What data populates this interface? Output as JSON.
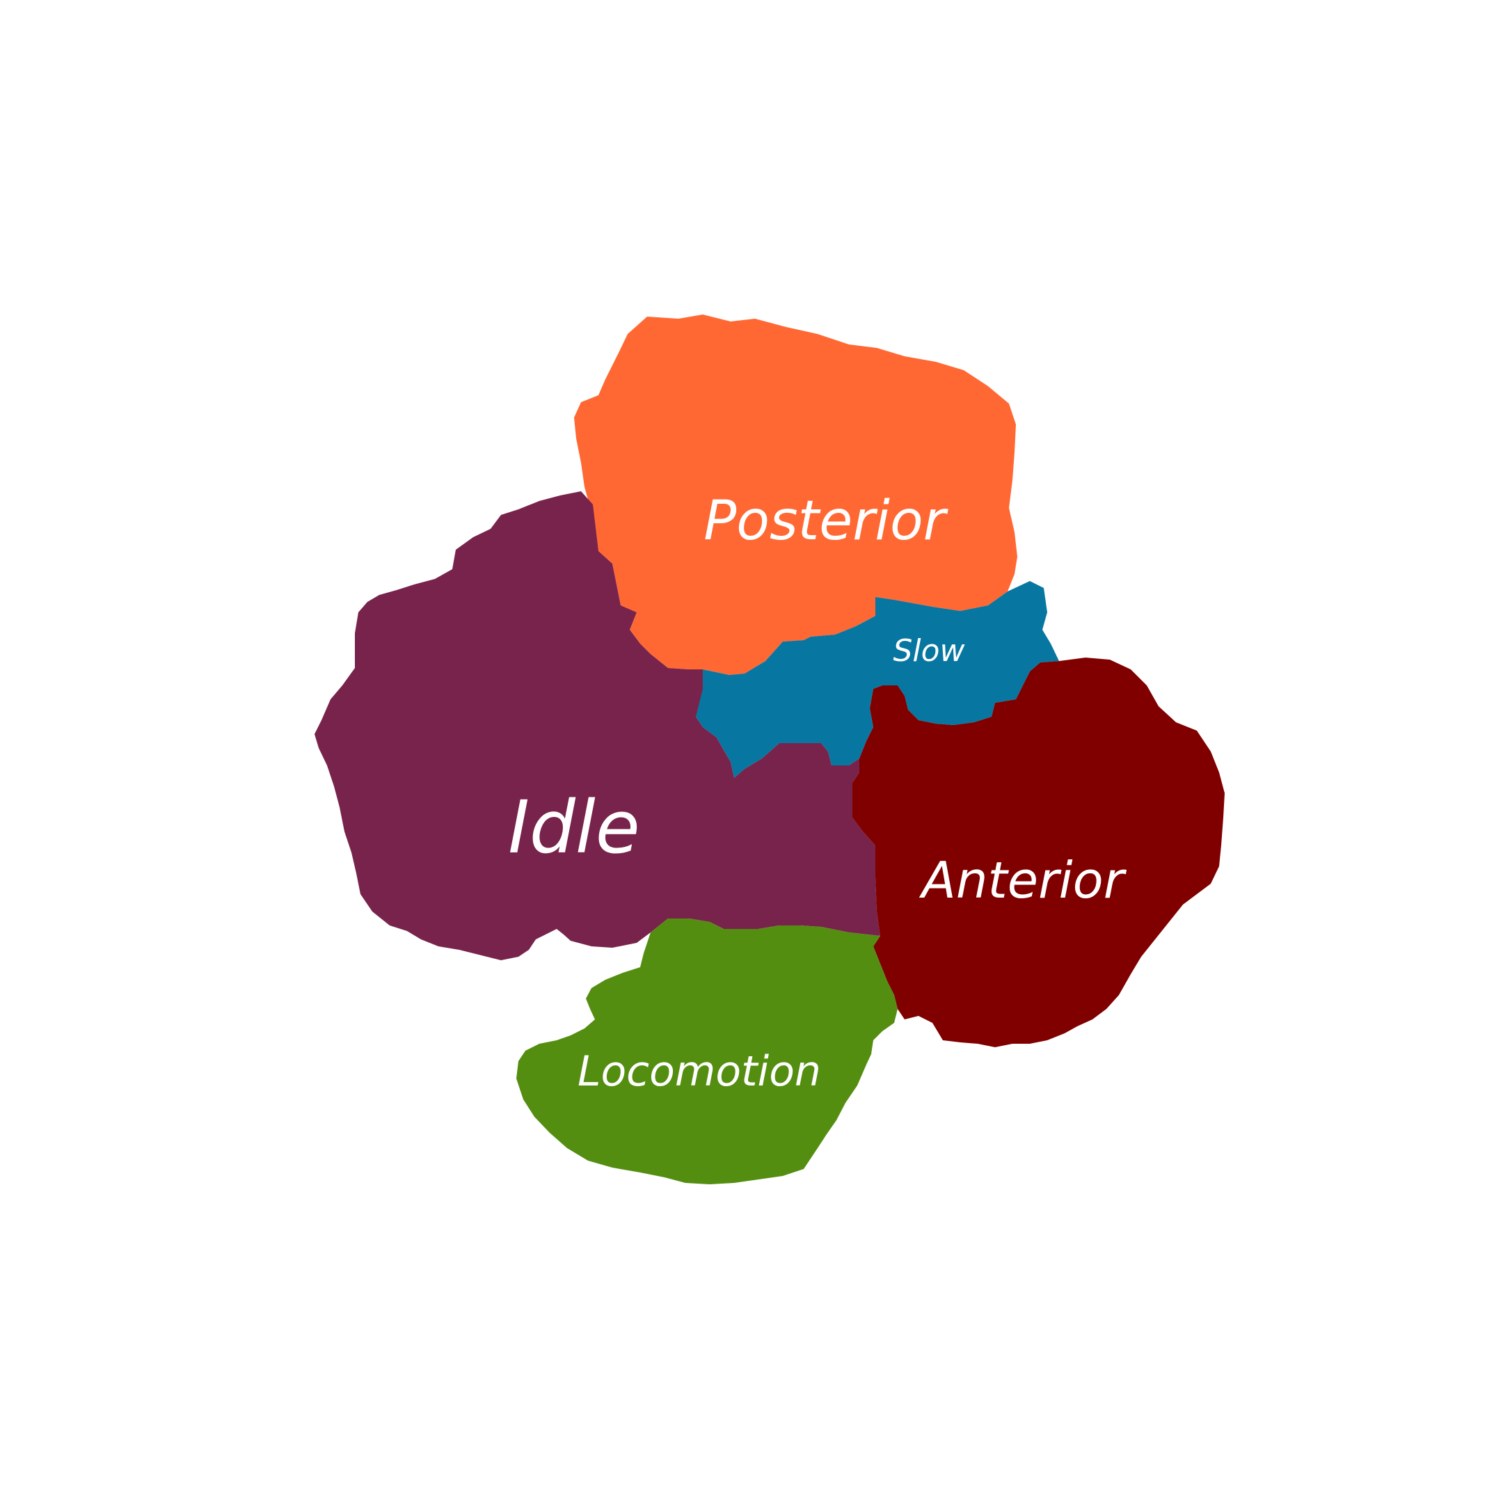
{
  "regions": [
    {
      "id": "posterior",
      "label": "Posterior",
      "color": "#ff6833"
    },
    {
      "id": "slow",
      "label": "Slow",
      "color": "#0777a2"
    },
    {
      "id": "idle",
      "label": "Idle",
      "color": "#78234b"
    },
    {
      "id": "anterior",
      "label": "Anterior",
      "color": "#800000"
    },
    {
      "id": "locomotion",
      "label": "Locomotion",
      "color": "#548e10"
    }
  ]
}
